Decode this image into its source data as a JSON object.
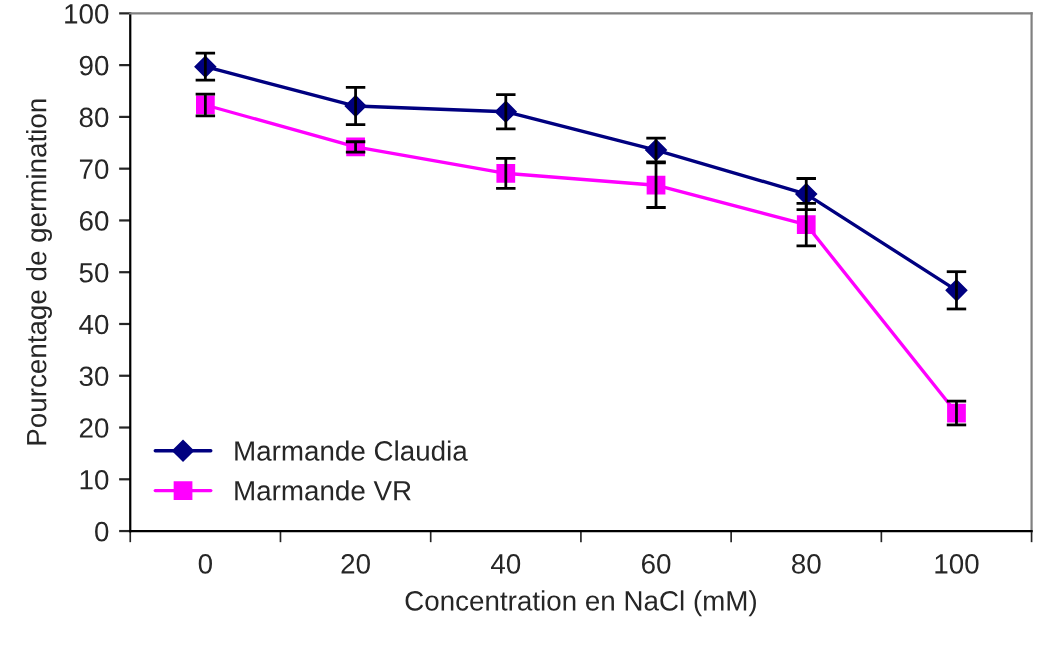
{
  "chart_data": {
    "type": "line",
    "xlabel": "Concentration en NaCl (mM)",
    "ylabel": "Pourcentage de germination",
    "categories": [
      "0",
      "20",
      "40",
      "60",
      "80",
      "100"
    ],
    "series": [
      {
        "name": "Marmande Claudia",
        "color": "#000080",
        "marker": "diamond",
        "values": [
          89.7,
          82.1,
          81.0,
          73.6,
          65.1,
          46.5
        ],
        "errors": [
          2.6,
          3.6,
          3.3,
          2.3,
          3.0,
          3.6
        ]
      },
      {
        "name": "Marmande VR",
        "color": "#ff00ff",
        "marker": "square",
        "values": [
          82.3,
          74.2,
          69.1,
          66.8,
          59.2,
          22.8
        ],
        "errors": [
          2.1,
          1.0,
          2.9,
          4.3,
          4.1,
          2.3
        ]
      }
    ],
    "ylim": [
      0,
      100
    ],
    "yticks": [
      0,
      10,
      20,
      30,
      40,
      50,
      60,
      70,
      80,
      90,
      100
    ],
    "grid": false,
    "legend": "bottom left"
  }
}
